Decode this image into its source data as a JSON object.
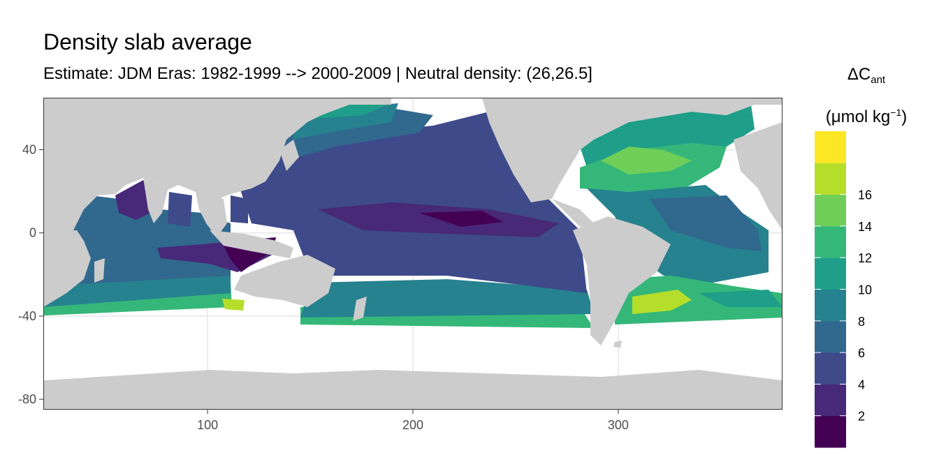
{
  "title": "Density slab average",
  "subtitle": "Estimate: JDM Eras: 1982-1999 --> 2000-2009 | Neutral density: (26,26.5]",
  "legend": {
    "symbol": "ΔC",
    "symbol_sub": "ant",
    "unit_prefix": "(μmol kg",
    "unit_sup": "−1",
    "unit_suffix": ")",
    "bins": [
      {
        "color": "#440154"
      },
      {
        "color": "#482878"
      },
      {
        "color": "#3e4a89"
      },
      {
        "color": "#31688e"
      },
      {
        "color": "#26828e"
      },
      {
        "color": "#1f9e89"
      },
      {
        "color": "#35b779"
      },
      {
        "color": "#6ece58"
      },
      {
        "color": "#b5de2b"
      },
      {
        "color": "#fde725"
      }
    ],
    "tick_labels": [
      "2",
      "4",
      "6",
      "8",
      "10",
      "12",
      "14",
      "16"
    ]
  },
  "chart_data": {
    "type": "heatmap",
    "xlim": [
      20,
      380
    ],
    "ylim": [
      -85,
      65
    ],
    "x_ticks": [
      100,
      200,
      300
    ],
    "y_ticks": [
      40,
      0,
      -40,
      -80
    ],
    "land_color": "#cccccc",
    "ocean_na_color": "#ffffff",
    "grid": true
  }
}
